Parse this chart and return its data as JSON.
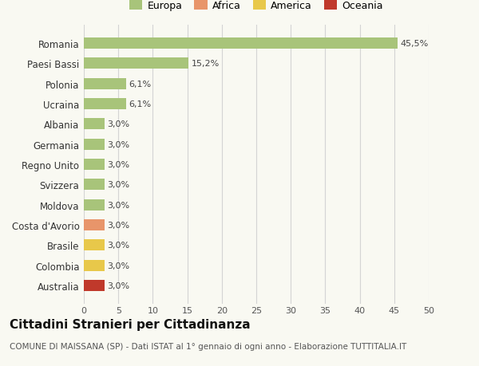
{
  "categories": [
    "Australia",
    "Colombia",
    "Brasile",
    "Costa d'Avorio",
    "Moldova",
    "Svizzera",
    "Regno Unito",
    "Germania",
    "Albania",
    "Ucraina",
    "Polonia",
    "Paesi Bassi",
    "Romania"
  ],
  "values": [
    3.0,
    3.0,
    3.0,
    3.0,
    3.0,
    3.0,
    3.0,
    3.0,
    3.0,
    6.1,
    6.1,
    15.2,
    45.5
  ],
  "colors": [
    "#c0392b",
    "#e8c84a",
    "#e8c84a",
    "#e8956a",
    "#a8c47a",
    "#a8c47a",
    "#a8c47a",
    "#a8c47a",
    "#a8c47a",
    "#a8c47a",
    "#a8c47a",
    "#a8c47a",
    "#a8c47a"
  ],
  "labels": [
    "3,0%",
    "3,0%",
    "3,0%",
    "3,0%",
    "3,0%",
    "3,0%",
    "3,0%",
    "3,0%",
    "3,0%",
    "6,1%",
    "6,1%",
    "15,2%",
    "45,5%"
  ],
  "xlim": [
    0,
    50
  ],
  "xticks": [
    0,
    5,
    10,
    15,
    20,
    25,
    30,
    35,
    40,
    45,
    50
  ],
  "legend_items": [
    {
      "label": "Europa",
      "color": "#a8c47a"
    },
    {
      "label": "Africa",
      "color": "#e8956a"
    },
    {
      "label": "America",
      "color": "#e8c84a"
    },
    {
      "label": "Oceania",
      "color": "#c0392b"
    }
  ],
  "title": "Cittadini Stranieri per Cittadinanza",
  "subtitle": "COMUNE DI MAISSANA (SP) - Dati ISTAT al 1° gennaio di ogni anno - Elaborazione TUTTITALIA.IT",
  "bg_color": "#f9f9f2",
  "grid_color": "#d4d4d4",
  "bar_height": 0.55,
  "label_fontsize": 8,
  "ytick_fontsize": 8.5,
  "xtick_fontsize": 8,
  "title_fontsize": 11,
  "subtitle_fontsize": 7.5,
  "legend_fontsize": 9
}
